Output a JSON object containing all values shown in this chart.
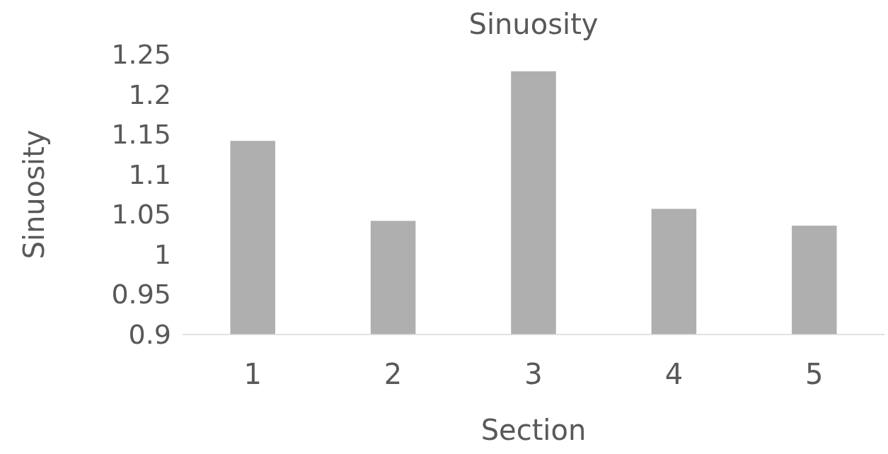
{
  "chart_data": {
    "type": "bar",
    "title": "Sinuosity",
    "xlabel": "Section",
    "ylabel": "Sinuosity",
    "categories": [
      "1",
      "2",
      "3",
      "4",
      "5"
    ],
    "values": [
      1.142,
      1.042,
      1.229,
      1.057,
      1.036
    ],
    "color": "#afafaf",
    "ylim": [
      0.9,
      1.25
    ],
    "yticks": [
      {
        "value": 0.9,
        "label": "0.9"
      },
      {
        "value": 0.95,
        "label": "0.95"
      },
      {
        "value": 1,
        "label": "1"
      },
      {
        "value": 1.05,
        "label": "1.05"
      },
      {
        "value": 1.1,
        "label": "1.1"
      },
      {
        "value": 1.15,
        "label": "1.15"
      },
      {
        "value": 1.2,
        "label": "1.2"
      },
      {
        "value": 1.25,
        "label": "1.25"
      }
    ],
    "grid": false
  }
}
